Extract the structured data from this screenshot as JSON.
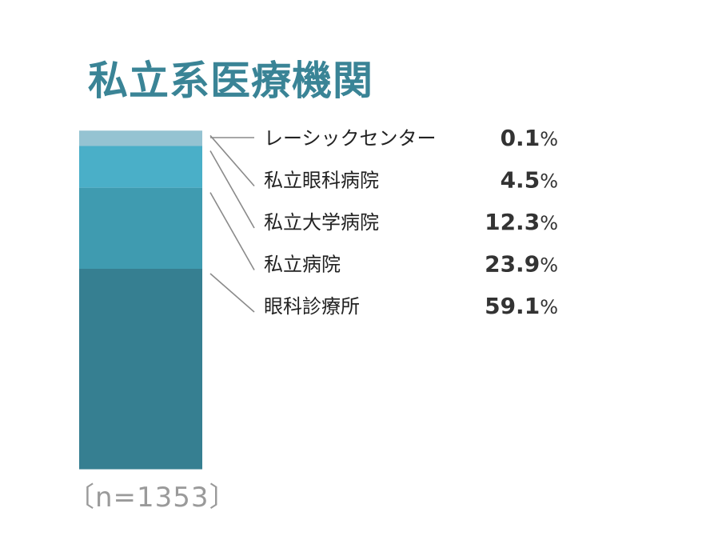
{
  "chart_data": {
    "type": "bar",
    "stacked": true,
    "title": "私立系医療機関",
    "sample_size": "〔n=1353〕",
    "unit": "%",
    "ylim": [
      0,
      100
    ],
    "categories": [
      "レーシックセンター",
      "私立眼科病院",
      "私立大学病院",
      "私立病院",
      "眼科診療所"
    ],
    "values": [
      0.1,
      4.5,
      12.3,
      23.9,
      59.1
    ],
    "value_labels": [
      "0.1",
      "4.5",
      "12.3",
      "23.9",
      "59.1"
    ],
    "colors": [
      "#cfe4ea",
      "#95c3d2",
      "#4aafc8",
      "#3f9bb0",
      "#367f91"
    ],
    "leader_color": "#8a8a8a"
  }
}
